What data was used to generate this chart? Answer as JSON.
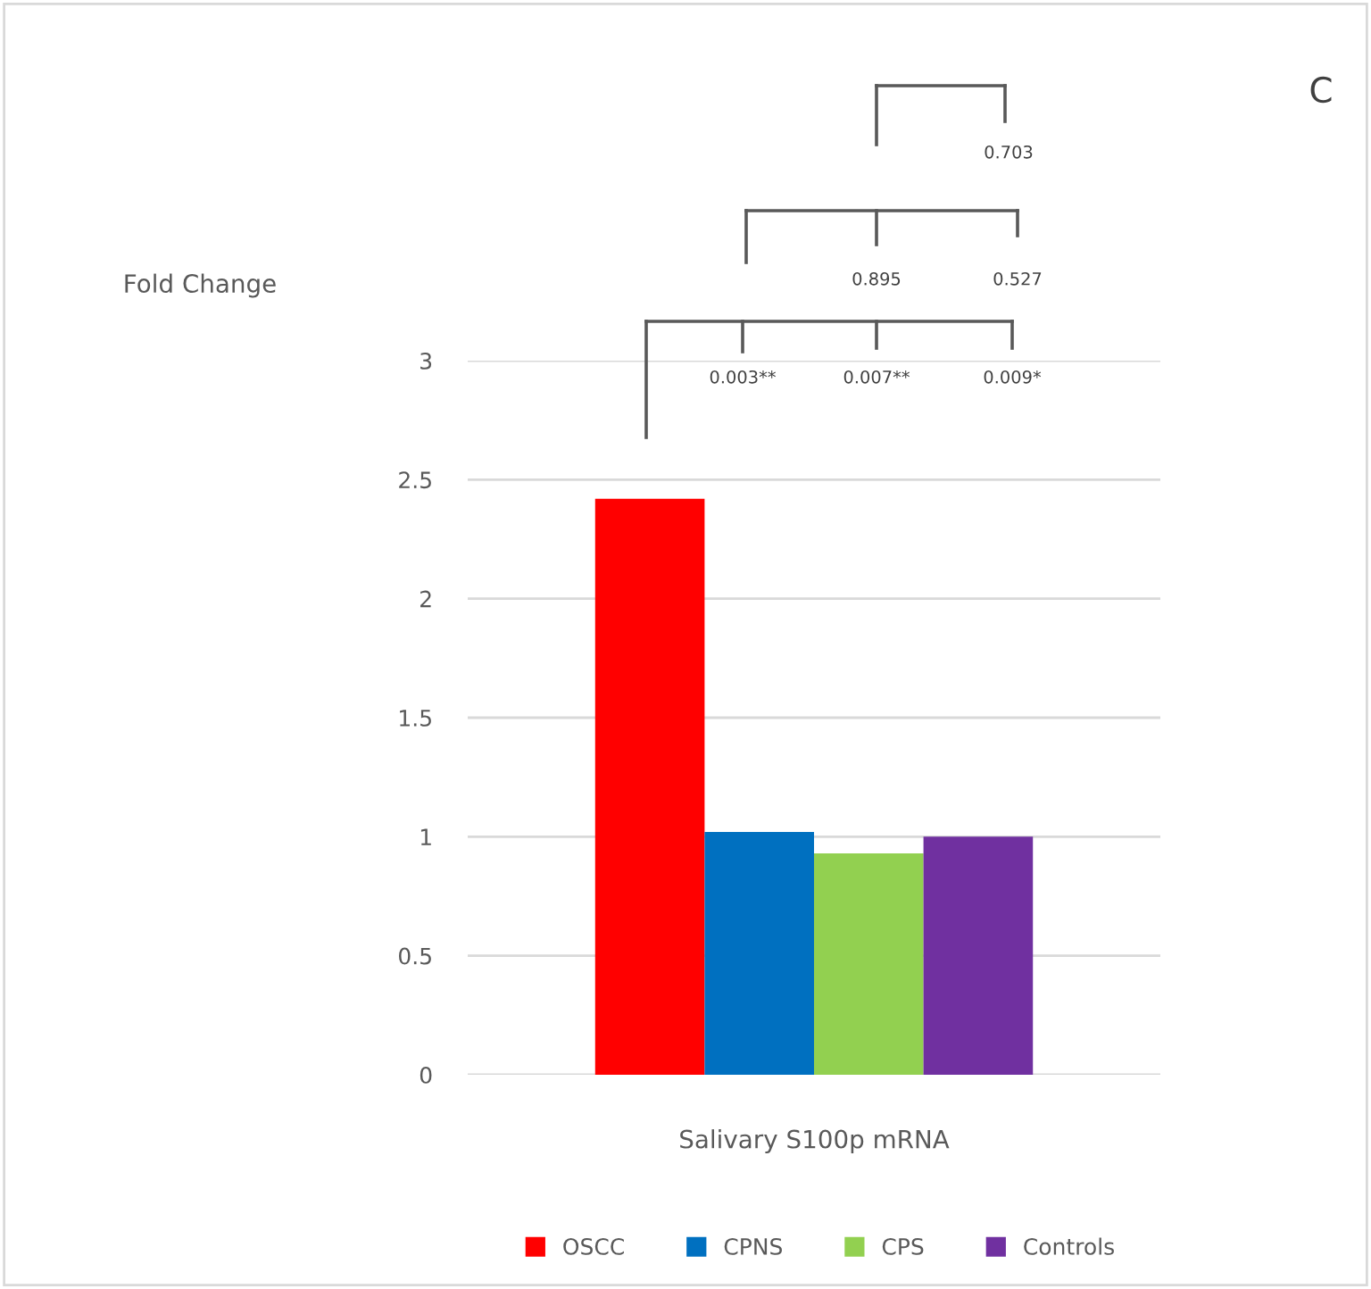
{
  "chart_data": {
    "type": "bar",
    "categories": [
      "Salivary S100p mRNA"
    ],
    "ylim": [
      0,
      3
    ],
    "yticks": [
      0,
      0.5,
      1,
      1.5,
      2,
      2.5,
      3
    ],
    "grid": "y",
    "legend": "bottom",
    "series": [
      {
        "name": "OSCC",
        "color": "#ff0000",
        "values": [
          2.42
        ]
      },
      {
        "name": "CPNS",
        "color": "#0070c0",
        "values": [
          1.02
        ]
      },
      {
        "name": "CPS",
        "color": "#92d050",
        "values": [
          0.93
        ]
      },
      {
        "name": "Controls",
        "color": "#7030a0",
        "values": [
          1.0
        ]
      }
    ],
    "annotations": [
      "C",
      "Fold Change",
      "0.703",
      "0.895",
      "0.527",
      "0.003**",
      "0.007**",
      "0.009*"
    ]
  }
}
